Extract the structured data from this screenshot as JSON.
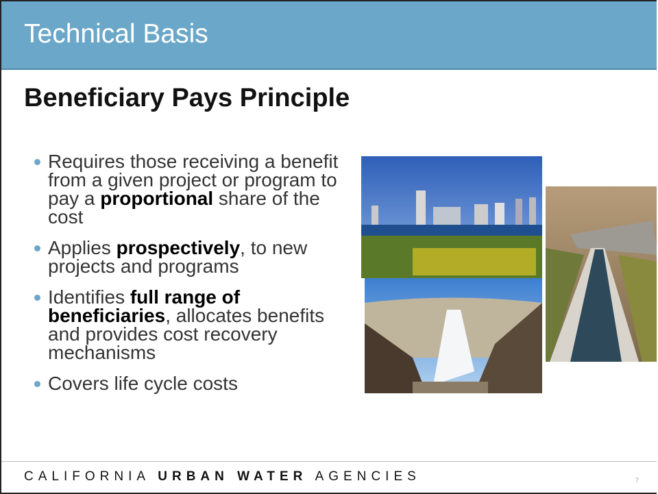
{
  "header": {
    "title": "Technical Basis"
  },
  "slide_title": "Beneficiary Pays Principle",
  "bullets": [
    [
      {
        "text": "Requires those receiving a benefit from a given project or program to pay a ",
        "bold": false
      },
      {
        "text": "proportional",
        "bold": true
      },
      {
        "text": " share of the cost",
        "bold": false
      }
    ],
    [
      {
        "text": "Applies ",
        "bold": false
      },
      {
        "text": "prospectively",
        "bold": true
      },
      {
        "text": ", to new projects and programs",
        "bold": false
      }
    ],
    [
      {
        "text": "Identifies ",
        "bold": false
      },
      {
        "text": "full range of beneficiaries",
        "bold": true
      },
      {
        "text": ", allocates benefits and provides cost recovery mechanisms",
        "bold": false
      }
    ],
    [
      {
        "text": "Covers life cycle costs",
        "bold": false
      }
    ]
  ],
  "footer": {
    "parts": [
      {
        "text": "CALIFORNIA",
        "bold": false
      },
      {
        "text": "URBAN WATER",
        "bold": true
      },
      {
        "text": "AGENCIES",
        "bold": false
      }
    ],
    "page_number": "7"
  }
}
